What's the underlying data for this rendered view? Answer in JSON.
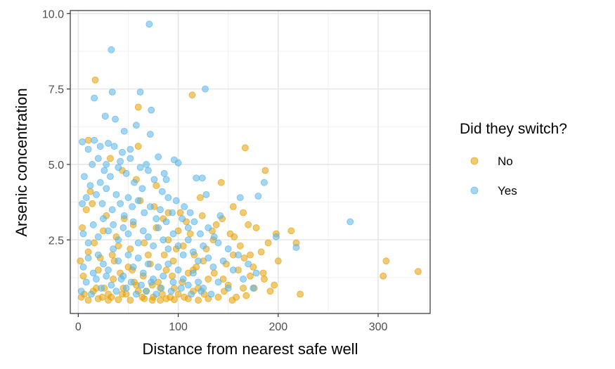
{
  "chart_data": {
    "type": "scatter",
    "title": "",
    "xlabel": "Distance from nearest safe well",
    "ylabel": "Arsenic concentration",
    "xlim": [
      -8,
      352
    ],
    "ylim": [
      0.06,
      10.1
    ],
    "x_ticks": [
      0,
      100,
      200,
      300
    ],
    "x_tick_labels": [
      "0",
      "100",
      "200",
      "300"
    ],
    "y_ticks": [
      2.5,
      5.0,
      7.5,
      10.0
    ],
    "y_tick_labels": [
      "2.5",
      "5.0",
      "7.5",
      "10.0"
    ],
    "grid": true,
    "legend": {
      "title": "Did they switch?",
      "position": "right",
      "entries": [
        "No",
        "Yes"
      ]
    },
    "colors": {
      "No": "#E69F00",
      "Yes": "#56B4E9"
    },
    "point_alpha": 0.55,
    "series": [
      {
        "name": "No",
        "points": [
          [
            17,
            7.8
          ],
          [
            114,
            7.3
          ],
          [
            60,
            6.9
          ],
          [
            167,
            5.55
          ],
          [
            60,
            5.6
          ],
          [
            10,
            5.8
          ],
          [
            187,
            4.8
          ],
          [
            143,
            4.4
          ],
          [
            122,
            3.9
          ],
          [
            155,
            3.6
          ],
          [
            165,
            3.4
          ],
          [
            170,
            3.0
          ],
          [
            178,
            2.9
          ],
          [
            213,
            2.8
          ],
          [
            198,
            2.7
          ],
          [
            190,
            2.4
          ],
          [
            183,
            2.1
          ],
          [
            218,
            2.4
          ],
          [
            308,
            1.8
          ],
          [
            305,
            1.3
          ],
          [
            340,
            1.45
          ],
          [
            222,
            0.7
          ],
          [
            200,
            1.8
          ],
          [
            196,
            1.0
          ],
          [
            172,
            1.3
          ],
          [
            160,
            1.5
          ],
          [
            150,
            1.0
          ],
          [
            140,
            0.6
          ],
          [
            130,
            1.2
          ],
          [
            120,
            0.9
          ],
          [
            110,
            1.4
          ],
          [
            100,
            0.7
          ],
          [
            95,
            1.8
          ],
          [
            90,
            2.5
          ],
          [
            85,
            3.2
          ],
          [
            80,
            1.1
          ],
          [
            75,
            0.6
          ],
          [
            70,
            2.0
          ],
          [
            65,
            1.3
          ],
          [
            60,
            0.8
          ],
          [
            55,
            3.0
          ],
          [
            50,
            1.6
          ],
          [
            45,
            0.9
          ],
          [
            40,
            2.3
          ],
          [
            35,
            1.2
          ],
          [
            30,
            0.7
          ],
          [
            25,
            2.8
          ],
          [
            20,
            1.5
          ],
          [
            15,
            0.8
          ],
          [
            10,
            2.1
          ],
          [
            5,
            1.3
          ],
          [
            3,
            0.6
          ],
          [
            8,
            3.5
          ],
          [
            12,
            4.1
          ],
          [
            18,
            0.9
          ],
          [
            22,
            1.9
          ],
          [
            28,
            3.3
          ],
          [
            33,
            0.6
          ],
          [
            38,
            2.6
          ],
          [
            42,
            1.4
          ],
          [
            48,
            0.7
          ],
          [
            52,
            2.2
          ],
          [
            58,
            1.0
          ],
          [
            62,
            3.8
          ],
          [
            68,
            0.8
          ],
          [
            72,
            1.7
          ],
          [
            78,
            2.9
          ],
          [
            82,
            0.9
          ],
          [
            88,
            1.5
          ],
          [
            92,
            0.6
          ],
          [
            98,
            2.2
          ],
          [
            104,
            1.1
          ],
          [
            108,
            3.1
          ],
          [
            115,
            0.8
          ],
          [
            125,
            1.8
          ],
          [
            135,
            2.5
          ],
          [
            145,
            1.2
          ],
          [
            155,
            2.0
          ],
          [
            165,
            0.9
          ],
          [
            175,
            1.6
          ],
          [
            185,
            1.4
          ],
          [
            192,
            0.8
          ],
          [
            158,
            0.6
          ],
          [
            148,
            1.7
          ],
          [
            138,
            3.0
          ],
          [
            128,
            2.2
          ],
          [
            118,
            1.6
          ],
          [
            112,
            2.7
          ],
          [
            102,
            3.4
          ],
          [
            96,
            0.9
          ],
          [
            86,
            2.0
          ],
          [
            76,
            3.6
          ],
          [
            66,
            2.4
          ],
          [
            56,
            1.1
          ],
          [
            46,
            3.2
          ],
          [
            36,
            1.8
          ],
          [
            26,
            0.9
          ],
          [
            16,
            2.4
          ],
          [
            6,
            0.7
          ],
          [
            2,
            1.8
          ],
          [
            4,
            2.9
          ],
          [
            14,
            3.7
          ],
          [
            24,
            0.6
          ],
          [
            34,
            2.0
          ],
          [
            44,
            0.7
          ],
          [
            54,
            1.5
          ],
          [
            64,
            0.6
          ],
          [
            74,
            1.0
          ],
          [
            84,
            0.7
          ],
          [
            94,
            1.3
          ],
          [
            106,
            0.6
          ],
          [
            116,
            2.0
          ],
          [
            126,
            0.7
          ],
          [
            136,
            1.4
          ],
          [
            146,
            0.8
          ],
          [
            156,
            2.6
          ],
          [
            166,
            1.9
          ],
          [
            176,
            0.9
          ],
          [
            186,
            1.2
          ],
          [
            58,
            4.5
          ],
          [
            44,
            4.8
          ],
          [
            32,
            5.2
          ],
          [
            78,
            4.3
          ],
          [
            90,
            3.4
          ],
          [
            100,
            2.8
          ],
          [
            52,
            0.5
          ],
          [
            66,
            0.55
          ],
          [
            82,
            0.5
          ],
          [
            96,
            0.52
          ],
          [
            110,
            0.55
          ],
          [
            30,
            0.5
          ],
          [
            20,
            0.55
          ],
          [
            10,
            0.5
          ],
          [
            40,
            0.52
          ],
          [
            74,
            0.5
          ],
          [
            88,
            0.55
          ],
          [
            120,
            0.5
          ],
          [
            130,
            0.55
          ],
          [
            154,
            0.5
          ],
          [
            168,
            0.65
          ],
          [
            105,
            2.3
          ],
          [
            115,
            1.5
          ],
          [
            124,
            3.3
          ],
          [
            134,
            2.8
          ],
          [
            144,
            3.2
          ],
          [
            152,
            2.7
          ],
          [
            162,
            2.3
          ],
          [
            172,
            2.0
          ]
        ]
      },
      {
        "name": "Yes",
        "points": [
          [
            71,
            9.65
          ],
          [
            33,
            8.8
          ],
          [
            127,
            7.5
          ],
          [
            62,
            7.4
          ],
          [
            34,
            7.4
          ],
          [
            73,
            6.8
          ],
          [
            16,
            7.2
          ],
          [
            27,
            6.6
          ],
          [
            37,
            6.5
          ],
          [
            58,
            6.3
          ],
          [
            72,
            6.0
          ],
          [
            4,
            5.75
          ],
          [
            16,
            5.8
          ],
          [
            22,
            5.6
          ],
          [
            30,
            5.7
          ],
          [
            36,
            5.6
          ],
          [
            44,
            5.4
          ],
          [
            52,
            5.2
          ],
          [
            80,
            5.25
          ],
          [
            96,
            5.15
          ],
          [
            100,
            5.05
          ],
          [
            118,
            4.55
          ],
          [
            124,
            4.55
          ],
          [
            128,
            4.0
          ],
          [
            142,
            3.3
          ],
          [
            162,
            3.9
          ],
          [
            180,
            3.95
          ],
          [
            186,
            4.4
          ],
          [
            198,
            2.6
          ],
          [
            218,
            2.25
          ],
          [
            272,
            3.1
          ],
          [
            10,
            5.5
          ],
          [
            14,
            5.0
          ],
          [
            20,
            5.2
          ],
          [
            26,
            4.8
          ],
          [
            32,
            4.6
          ],
          [
            40,
            4.9
          ],
          [
            48,
            4.7
          ],
          [
            56,
            4.4
          ],
          [
            64,
            4.2
          ],
          [
            70,
            4.8
          ],
          [
            76,
            4.5
          ],
          [
            84,
            4.1
          ],
          [
            90,
            3.9
          ],
          [
            98,
            3.8
          ],
          [
            106,
            3.6
          ],
          [
            112,
            3.4
          ],
          [
            4,
            3.7
          ],
          [
            8,
            3.9
          ],
          [
            12,
            4.3
          ],
          [
            18,
            4.0
          ],
          [
            24,
            3.7
          ],
          [
            28,
            4.2
          ],
          [
            34,
            3.5
          ],
          [
            38,
            4.0
          ],
          [
            42,
            3.7
          ],
          [
            46,
            3.3
          ],
          [
            50,
            3.9
          ],
          [
            54,
            3.6
          ],
          [
            60,
            3.8
          ],
          [
            66,
            3.4
          ],
          [
            72,
            3.6
          ],
          [
            78,
            3.2
          ],
          [
            82,
            3.5
          ],
          [
            88,
            3.1
          ],
          [
            94,
            3.4
          ],
          [
            104,
            3.2
          ],
          [
            110,
            2.9
          ],
          [
            116,
            3.1
          ],
          [
            122,
            2.7
          ],
          [
            130,
            2.9
          ],
          [
            136,
            2.6
          ],
          [
            140,
            2.4
          ],
          [
            150,
            2.2
          ],
          [
            160,
            2.0
          ],
          [
            170,
            1.7
          ],
          [
            178,
            1.4
          ],
          [
            5,
            2.7
          ],
          [
            10,
            2.4
          ],
          [
            15,
            3.0
          ],
          [
            20,
            2.6
          ],
          [
            25,
            3.2
          ],
          [
            30,
            2.8
          ],
          [
            35,
            3.0
          ],
          [
            40,
            2.5
          ],
          [
            45,
            2.9
          ],
          [
            50,
            2.7
          ],
          [
            55,
            3.1
          ],
          [
            60,
            2.4
          ],
          [
            65,
            2.8
          ],
          [
            70,
            2.6
          ],
          [
            75,
            2.3
          ],
          [
            80,
            2.9
          ],
          [
            85,
            2.5
          ],
          [
            90,
            2.2
          ],
          [
            95,
            2.7
          ],
          [
            100,
            2.3
          ],
          [
            105,
            2.0
          ],
          [
            110,
            2.5
          ],
          [
            115,
            2.1
          ],
          [
            120,
            1.8
          ],
          [
            125,
            2.3
          ],
          [
            130,
            1.9
          ],
          [
            135,
            1.6
          ],
          [
            145,
            1.8
          ],
          [
            155,
            1.5
          ],
          [
            165,
            1.2
          ],
          [
            175,
            0.9
          ],
          [
            5,
            1.6
          ],
          [
            10,
            1.9
          ],
          [
            15,
            1.4
          ],
          [
            20,
            2.0
          ],
          [
            25,
            1.7
          ],
          [
            30,
            1.5
          ],
          [
            35,
            2.2
          ],
          [
            40,
            1.8
          ],
          [
            45,
            1.3
          ],
          [
            50,
            2.0
          ],
          [
            55,
            1.6
          ],
          [
            60,
            1.9
          ],
          [
            65,
            1.4
          ],
          [
            70,
            1.7
          ],
          [
            75,
            1.2
          ],
          [
            80,
            1.6
          ],
          [
            85,
            1.3
          ],
          [
            90,
            1.7
          ],
          [
            95,
            1.1
          ],
          [
            100,
            1.5
          ],
          [
            105,
            1.2
          ],
          [
            110,
            1.0
          ],
          [
            115,
            1.4
          ],
          [
            120,
            1.1
          ],
          [
            125,
            0.9
          ],
          [
            140,
            1.1
          ],
          [
            150,
            0.9
          ],
          [
            3,
            0.8
          ],
          [
            8,
            1.1
          ],
          [
            13,
            0.7
          ],
          [
            18,
            1.2
          ],
          [
            23,
            0.9
          ],
          [
            28,
            1.3
          ],
          [
            33,
            1.0
          ],
          [
            38,
            0.8
          ],
          [
            43,
            1.2
          ],
          [
            48,
            0.9
          ],
          [
            53,
            1.1
          ],
          [
            58,
            0.7
          ],
          [
            63,
            1.0
          ],
          [
            68,
            0.8
          ],
          [
            73,
            1.1
          ],
          [
            78,
            0.7
          ],
          [
            83,
            0.9
          ],
          [
            93,
            0.8
          ],
          [
            103,
            0.9
          ],
          [
            113,
            0.7
          ],
          [
            123,
            0.8
          ],
          [
            133,
            0.7
          ],
          [
            6,
            4.6
          ],
          [
            22,
            4.4
          ],
          [
            28,
            5.0
          ],
          [
            42,
            5.1
          ],
          [
            62,
            4.9
          ],
          [
            52,
            5.5
          ],
          [
            86,
            4.7
          ],
          [
            68,
            5.0
          ],
          [
            46,
            6.1
          ],
          [
            88,
            4.5
          ]
        ]
      }
    ]
  }
}
